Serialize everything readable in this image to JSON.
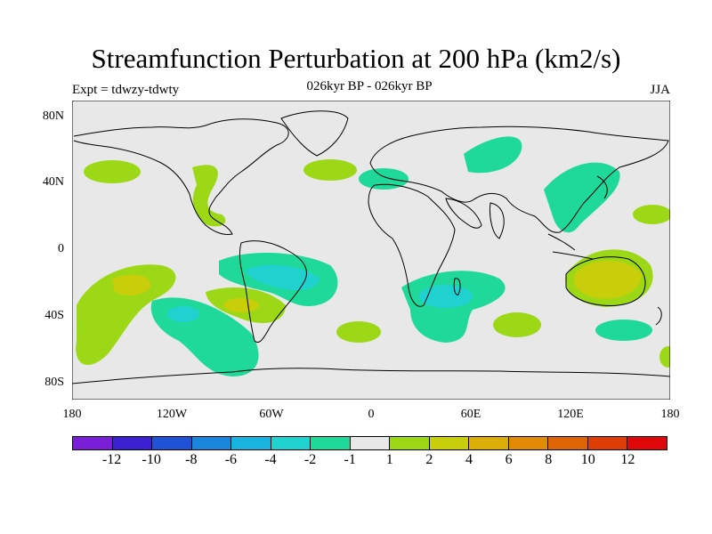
{
  "header": {
    "title": "Streamfunction Perturbation at 200 hPa (km2/s)",
    "subtitle": "026kyr BP - 026kyr BP",
    "left_label": "Expt = tdwzy-tdwty",
    "right_label": "JJA"
  },
  "map": {
    "x_ticks": [
      "180",
      "120W",
      "60W",
      "0",
      "60E",
      "120E",
      "180"
    ],
    "y_ticks": [
      "80N",
      "40N",
      "0",
      "40S",
      "80S"
    ],
    "ocean_color": "#e8e8e8",
    "coastline_color": "#000000"
  },
  "colorbar": {
    "colors": [
      "#7a1ed8",
      "#3a22d2",
      "#1f52d6",
      "#1a86db",
      "#19b3df",
      "#1fd1cf",
      "#1ed99a",
      "#e8e8e8",
      "#9dd816",
      "#c9ce0a",
      "#dcae05",
      "#e08a06",
      "#de6506",
      "#de3e06",
      "#e0070a"
    ],
    "labels": [
      "-12",
      "-10",
      "-8",
      "-6",
      "-4",
      "-2",
      "-1",
      "1",
      "2",
      "4",
      "6",
      "8",
      "10",
      "12"
    ]
  }
}
